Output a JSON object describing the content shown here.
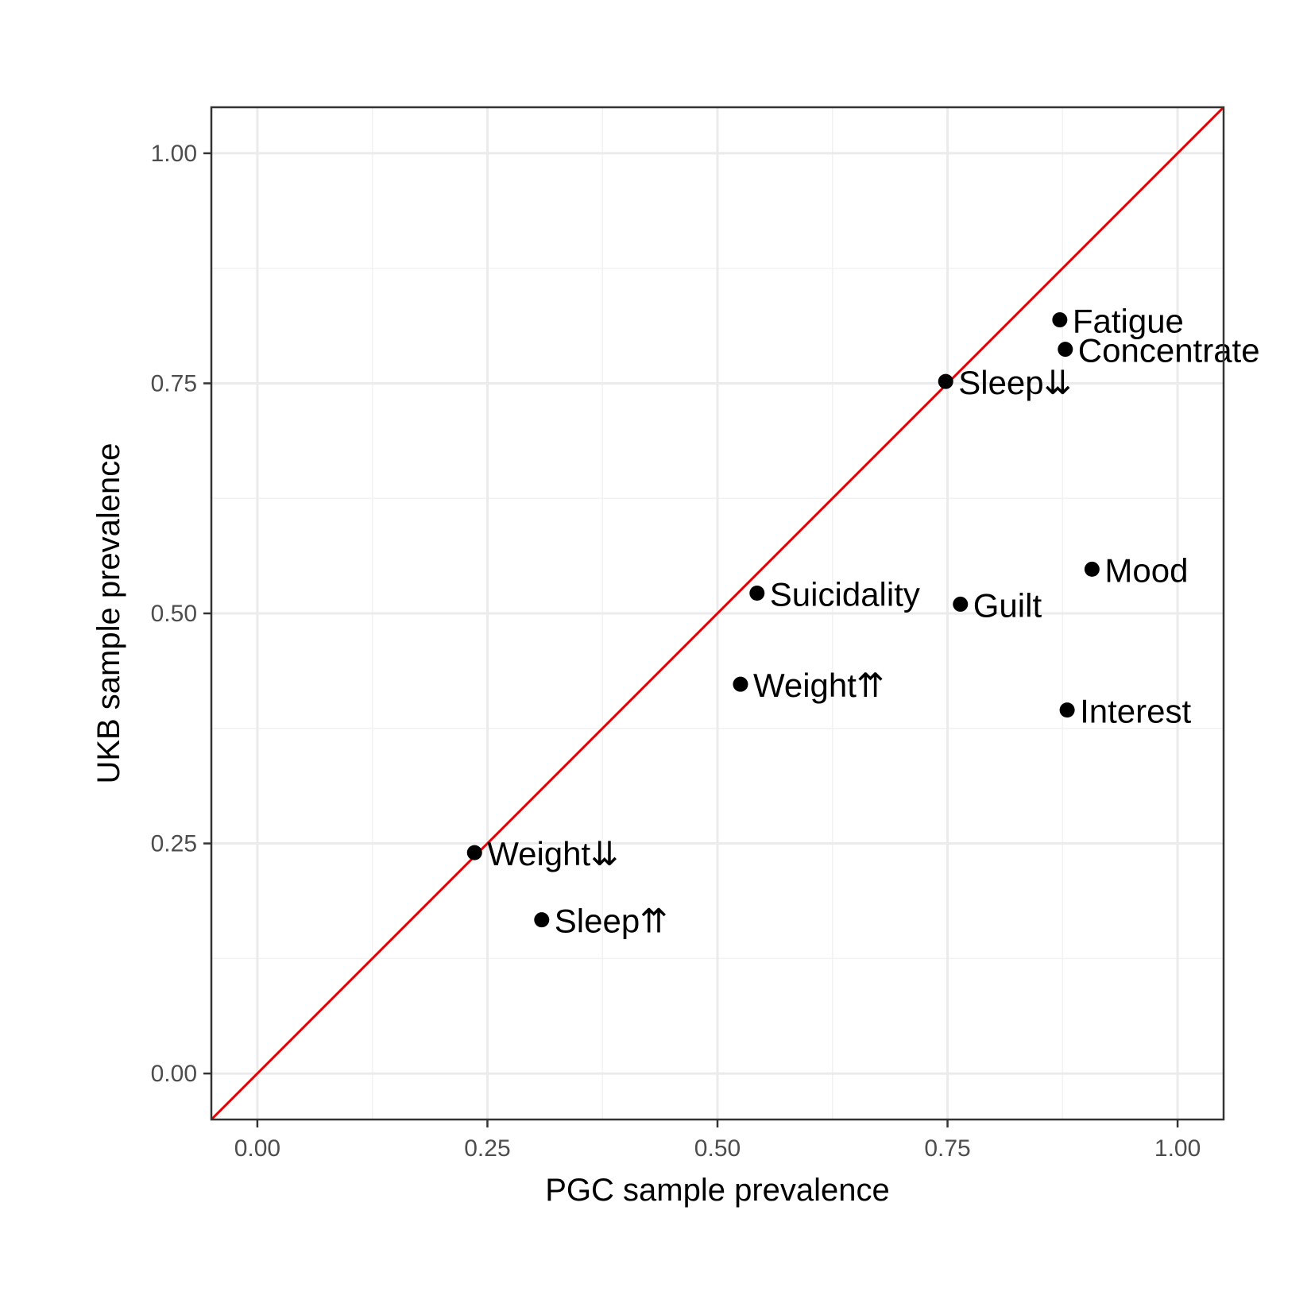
{
  "chart_data": {
    "type": "scatter",
    "title": "",
    "xlabel": "PGC sample prevalence",
    "ylabel": "UKB sample prevalence",
    "xlim": [
      -0.05,
      1.05
    ],
    "ylim": [
      -0.05,
      1.05
    ],
    "x_ticks": [
      "0.00",
      "0.25",
      "0.50",
      "0.75",
      "1.00"
    ],
    "y_ticks": [
      "0.00",
      "0.25",
      "0.50",
      "0.75",
      "1.00"
    ],
    "x_tick_values": [
      0,
      0.25,
      0.5,
      0.75,
      1.0
    ],
    "y_tick_values": [
      0,
      0.25,
      0.5,
      0.75,
      1.0
    ],
    "grid": true,
    "reference_line": {
      "slope": 1,
      "intercept": 0,
      "color": "#e60000"
    },
    "point_color": "#000000",
    "points": [
      {
        "label": "Fatigue",
        "x": 0.872,
        "y": 0.819
      },
      {
        "label": "Concentrate",
        "x": 0.878,
        "y": 0.787
      },
      {
        "label": "Sleep⇊",
        "x": 0.748,
        "y": 0.752
      },
      {
        "label": "Mood",
        "x": 0.907,
        "y": 0.548
      },
      {
        "label": "Suicidality",
        "x": 0.543,
        "y": 0.522
      },
      {
        "label": "Guilt",
        "x": 0.764,
        "y": 0.51
      },
      {
        "label": "Weight⇈",
        "x": 0.525,
        "y": 0.423
      },
      {
        "label": "Interest",
        "x": 0.88,
        "y": 0.395
      },
      {
        "label": "Weight⇊",
        "x": 0.236,
        "y": 0.24
      },
      {
        "label": "Sleep⇈",
        "x": 0.309,
        "y": 0.167
      }
    ]
  }
}
